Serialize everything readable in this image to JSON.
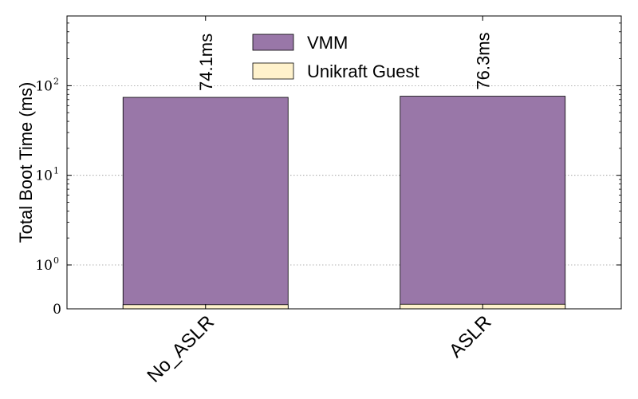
{
  "chart_data": {
    "type": "bar",
    "stacked": true,
    "scale": "symlog",
    "ylabel": "Total Boot Time (ms)",
    "categories": [
      "No_ASLR",
      "ASLR"
    ],
    "series": [
      {
        "name": "Unikraft Guest",
        "color": "#fff2cc",
        "values": [
          0.04,
          0.05
        ]
      },
      {
        "name": "VMM",
        "color": "#9977a8",
        "values": [
          74.06,
          76.25
        ]
      }
    ],
    "totals_labels": [
      "74.1ms",
      "76.3ms"
    ],
    "yticks": [
      {
        "value": 0,
        "base": "0",
        "exp": ""
      },
      {
        "value": 1,
        "base": "10",
        "exp": "0"
      },
      {
        "value": 10,
        "base": "10",
        "exp": "1"
      },
      {
        "value": 100,
        "base": "10",
        "exp": "2"
      }
    ],
    "ylim": [
      0,
      600
    ],
    "grid": true,
    "legend_position": "top-center"
  }
}
